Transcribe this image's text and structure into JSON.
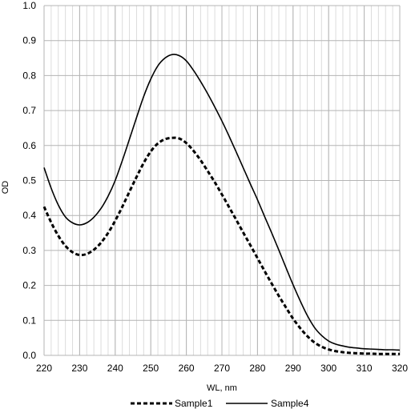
{
  "chart_data": {
    "type": "line",
    "title": "",
    "xlabel": "WL, nm",
    "ylabel": "OD",
    "xlim": [
      220,
      320
    ],
    "ylim": [
      0,
      1
    ],
    "x_ticks": [
      "220",
      "230",
      "240",
      "250",
      "260",
      "270",
      "280",
      "290",
      "300",
      "310",
      "320"
    ],
    "y_ticks": [
      "0.0",
      "0.1",
      "0.2",
      "0.3",
      "0.4",
      "0.5",
      "0.6",
      "0.7",
      "0.8",
      "0.9",
      "1.0"
    ],
    "x_minor_step": 2,
    "grid": true,
    "legend_position": "bottom",
    "series": [
      {
        "name": "Sample1",
        "line_style": "dashed",
        "color": "#000000",
        "x": [
          220,
          222,
          224,
          226,
          228,
          230,
          232,
          234,
          236,
          238,
          240,
          242,
          244,
          246,
          248,
          250,
          252,
          254,
          256,
          258,
          260,
          262,
          264,
          266,
          268,
          270,
          272,
          274,
          276,
          278,
          280,
          282,
          284,
          286,
          288,
          290,
          292,
          294,
          296,
          298,
          300,
          302,
          304,
          306,
          308,
          310,
          312,
          314,
          316,
          318,
          320
        ],
        "y": [
          0.425,
          0.38,
          0.342,
          0.313,
          0.295,
          0.287,
          0.29,
          0.302,
          0.322,
          0.35,
          0.385,
          0.425,
          0.468,
          0.51,
          0.55,
          0.583,
          0.606,
          0.618,
          0.622,
          0.62,
          0.607,
          0.585,
          0.558,
          0.527,
          0.495,
          0.46,
          0.424,
          0.388,
          0.351,
          0.315,
          0.278,
          0.241,
          0.205,
          0.17,
          0.137,
          0.105,
          0.078,
          0.055,
          0.037,
          0.025,
          0.017,
          0.012,
          0.009,
          0.007,
          0.006,
          0.005,
          0.005,
          0.004,
          0.004,
          0.004,
          0.004
        ]
      },
      {
        "name": "Sample4",
        "line_style": "solid",
        "color": "#000000",
        "x": [
          220,
          222,
          224,
          226,
          228,
          230,
          232,
          234,
          236,
          238,
          240,
          242,
          244,
          246,
          248,
          250,
          252,
          254,
          256,
          258,
          260,
          262,
          264,
          266,
          268,
          270,
          272,
          274,
          276,
          278,
          280,
          282,
          284,
          286,
          288,
          290,
          292,
          294,
          296,
          298,
          300,
          302,
          304,
          306,
          308,
          310,
          312,
          314,
          316,
          318,
          320
        ],
        "y": [
          0.537,
          0.478,
          0.43,
          0.396,
          0.379,
          0.373,
          0.379,
          0.395,
          0.42,
          0.455,
          0.5,
          0.557,
          0.618,
          0.68,
          0.74,
          0.79,
          0.828,
          0.85,
          0.86,
          0.857,
          0.842,
          0.815,
          0.783,
          0.748,
          0.71,
          0.67,
          0.627,
          0.582,
          0.536,
          0.49,
          0.445,
          0.397,
          0.35,
          0.301,
          0.251,
          0.202,
          0.156,
          0.114,
          0.08,
          0.057,
          0.041,
          0.032,
          0.027,
          0.023,
          0.021,
          0.019,
          0.018,
          0.017,
          0.016,
          0.016,
          0.015
        ]
      }
    ]
  }
}
